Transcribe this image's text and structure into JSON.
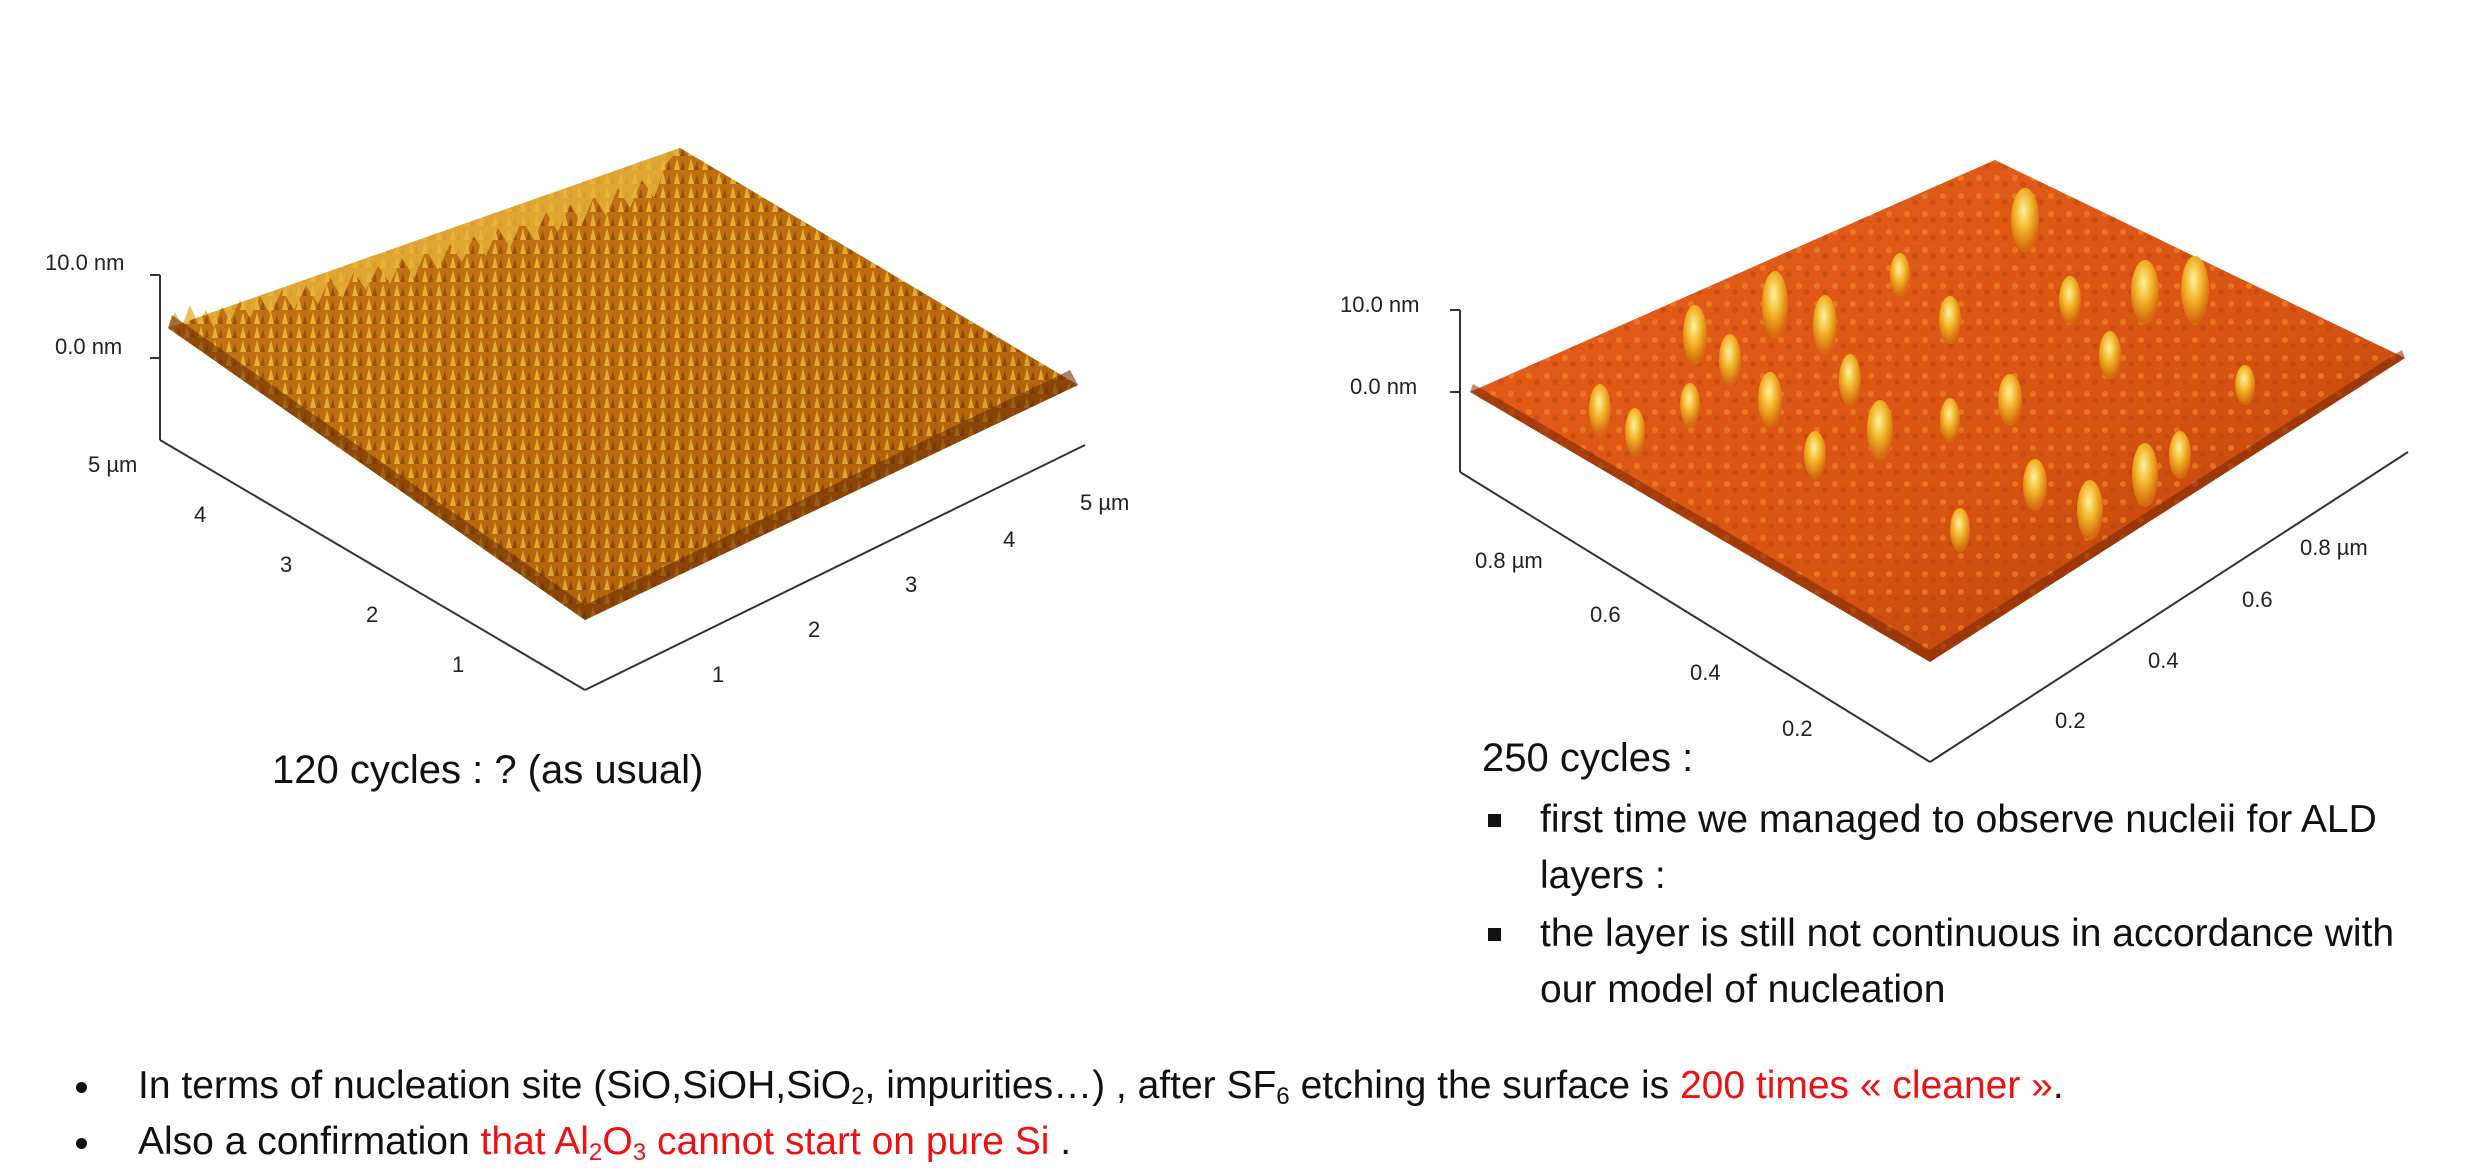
{
  "left_scan": {
    "z_labels": [
      "10.0 nm",
      "0.0 nm"
    ],
    "y_axis_labels": [
      "5 µm",
      "4",
      "3",
      "2",
      "1"
    ],
    "x_axis_labels": [
      "1",
      "2",
      "3",
      "4",
      "5 µm"
    ],
    "caption": "120 cycles : ? (as usual)"
  },
  "right_scan": {
    "z_labels": [
      "10.0 nm",
      "0.0 nm"
    ],
    "y_axis_labels": [
      "0.8 µm",
      "0.6",
      "0.4",
      "0.2"
    ],
    "x_axis_labels": [
      "0.2",
      "0.4",
      "0.6",
      "0.8 µm"
    ],
    "caption": "250 cycles :",
    "bullets": [
      "first time we managed to observe nucleii for ALD layers :",
      "the layer is still not continuous in accordance with our model of nucleation"
    ]
  },
  "bottom_bullets": {
    "b1": {
      "pre": "In terms of nucleation site (SiO,SiOH,SiO",
      "sub1": "2",
      "mid": ", impurities…) , after SF",
      "sub2": "6",
      "post": " etching the surface is ",
      "red": "200 times « cleaner »",
      "end": "."
    },
    "b2": {
      "pre": "Also a confirmation ",
      "red1": "that Al",
      "sub1": "2",
      "red2": "O",
      "sub2": "3",
      "red3": " cannot start on pure Si",
      "end": " ."
    }
  },
  "colors": {
    "afm_dark": "#7a3604",
    "afm_mid": "#c86a0e",
    "afm_light": "#f4c545",
    "afm_right_base": "#e0661a",
    "highlight_red": "#ee1111"
  }
}
